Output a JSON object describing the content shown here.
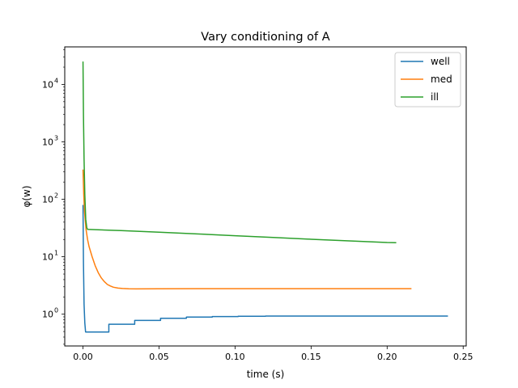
{
  "chart_data": {
    "type": "line",
    "title": "Vary conditioning of A",
    "xlabel": "time (s)",
    "ylabel": "φ(w)",
    "xlim": [
      -0.012,
      0.252
    ],
    "ylim": [
      0.28,
      45000
    ],
    "yscale": "log",
    "grid": false,
    "legend_position": "top-right",
    "x_ticks": [
      0.0,
      0.05,
      0.1,
      0.15,
      0.2,
      0.25
    ],
    "x_tick_labels": [
      "0.00",
      "0.05",
      "0.10",
      "0.15",
      "0.20",
      "0.25"
    ],
    "y_ticks": [
      1,
      10,
      100,
      1000,
      10000
    ],
    "y_tick_labels": [
      "10",
      "10",
      "10",
      "10",
      "10"
    ],
    "y_tick_exponents": [
      "0",
      "1",
      "2",
      "3",
      "4"
    ],
    "series": [
      {
        "name": "well",
        "color": "#1f77b4",
        "x": [
          0.0,
          0.0003,
          0.0007,
          0.0012,
          0.0017,
          0.017,
          0.017,
          0.034,
          0.034,
          0.051,
          0.051,
          0.068,
          0.068,
          0.085,
          0.085,
          0.102,
          0.102,
          0.12,
          0.12,
          0.14,
          0.16,
          0.18,
          0.2,
          0.22,
          0.24
        ],
        "y": [
          80,
          8,
          1.5,
          0.7,
          0.49,
          0.49,
          0.67,
          0.67,
          0.78,
          0.78,
          0.85,
          0.85,
          0.89,
          0.89,
          0.91,
          0.91,
          0.92,
          0.92,
          0.93,
          0.93,
          0.93,
          0.93,
          0.93,
          0.93,
          0.93
        ]
      },
      {
        "name": "med",
        "color": "#ff7f0e",
        "x": [
          0.0,
          0.0005,
          0.001,
          0.002,
          0.003,
          0.004,
          0.006,
          0.008,
          0.01,
          0.012,
          0.014,
          0.016,
          0.018,
          0.02,
          0.023,
          0.026,
          0.03,
          0.035,
          0.05,
          0.075,
          0.1,
          0.15,
          0.2,
          0.216
        ],
        "y": [
          330,
          120,
          60,
          30,
          20,
          15,
          10,
          7,
          5.3,
          4.3,
          3.7,
          3.3,
          3.1,
          2.95,
          2.85,
          2.8,
          2.77,
          2.76,
          2.77,
          2.78,
          2.78,
          2.78,
          2.78,
          2.78
        ]
      },
      {
        "name": "ill",
        "color": "#2ca02c",
        "x": [
          0.0,
          0.0003,
          0.0007,
          0.0012,
          0.0018,
          0.0025,
          0.003,
          0.025,
          0.05,
          0.075,
          0.1,
          0.125,
          0.15,
          0.175,
          0.2,
          0.206
        ],
        "y": [
          25000,
          3000,
          500,
          120,
          45,
          32,
          30,
          28.5,
          26.8,
          25,
          23.2,
          21.7,
          20.2,
          18.9,
          17.7,
          17.6
        ]
      }
    ]
  }
}
